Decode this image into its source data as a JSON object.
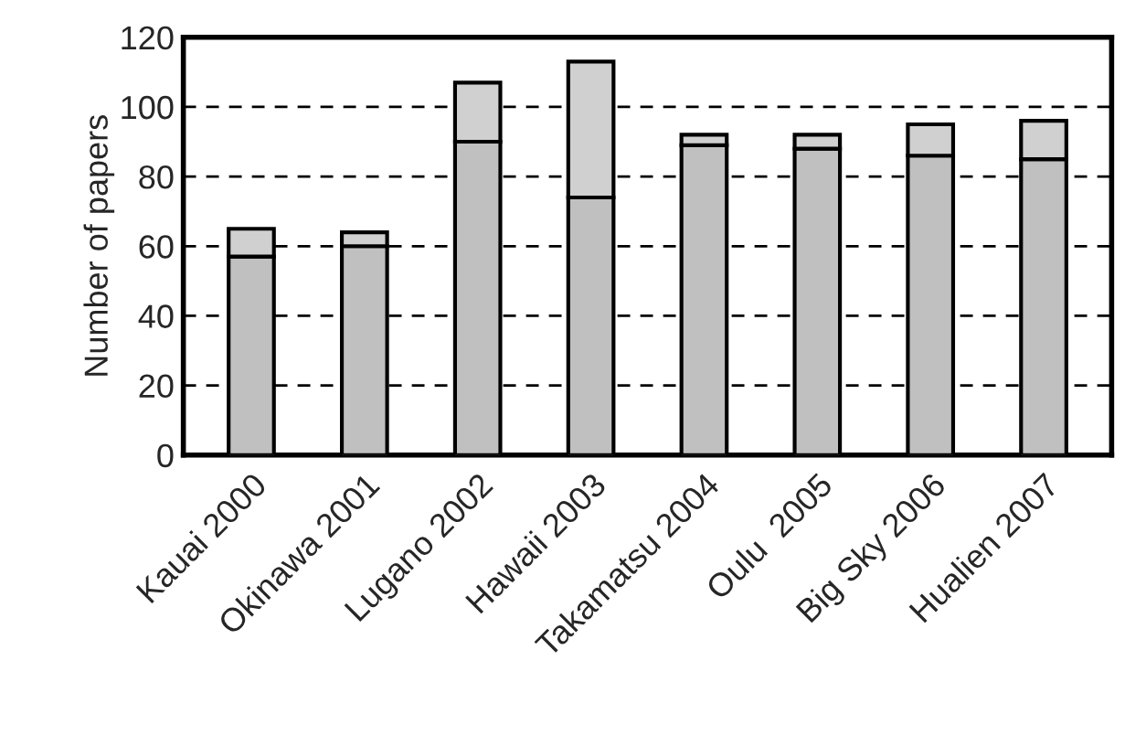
{
  "chart_data": {
    "type": "bar",
    "stacked": true,
    "ylabel": "Number of papers",
    "categories": [
      "Kauai 2000",
      "Okinawa 2001",
      "Lugano 2002",
      "Hawaii 2003",
      "Takamatsu 2004",
      "Oulu  2005",
      "Big Sky 2006",
      "Hualien 2007"
    ],
    "series": [
      {
        "color": "#c0c0c0",
        "values": [
          57,
          60,
          90,
          74,
          89,
          88,
          86,
          85
        ]
      },
      {
        "color": "#d0d0d0",
        "values": [
          8,
          4,
          17,
          39,
          3,
          4,
          9,
          11
        ]
      }
    ],
    "ylim": [
      0,
      120
    ],
    "yticks": [
      0,
      20,
      40,
      60,
      80,
      100,
      120
    ],
    "grid": "y",
    "legend": false
  }
}
